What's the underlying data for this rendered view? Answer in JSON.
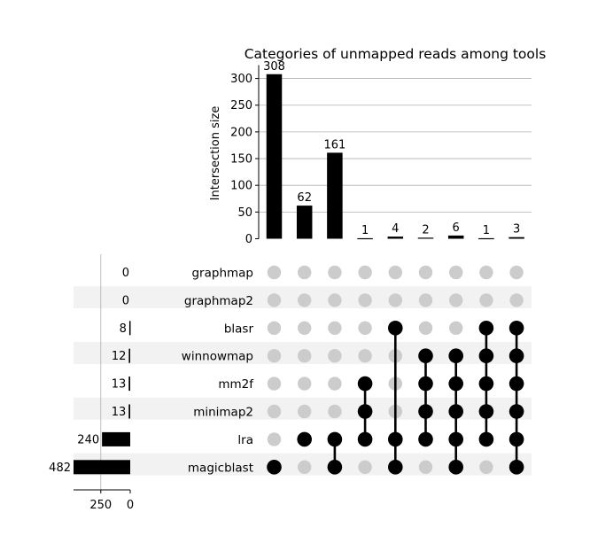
{
  "chart_data": {
    "type": "upset",
    "title": "Categories of unmapped reads among tools",
    "ylabel": "Intersection size",
    "ylim": [
      0,
      325
    ],
    "yticks": [
      0,
      50,
      100,
      150,
      200,
      250,
      300
    ],
    "grid": true,
    "sets": [
      {
        "name": "graphmap",
        "size": 0
      },
      {
        "name": "graphmap2",
        "size": 0
      },
      {
        "name": "blasr",
        "size": 8
      },
      {
        "name": "winnowmap",
        "size": 12
      },
      {
        "name": "mm2f",
        "size": 13
      },
      {
        "name": "minimap2",
        "size": 13
      },
      {
        "name": "lra",
        "size": 240
      },
      {
        "name": "magicblast",
        "size": 482
      }
    ],
    "set_size_xlim": [
      482,
      0
    ],
    "set_size_ticks": [
      250,
      0
    ],
    "intersections": [
      {
        "size": 308,
        "members": [
          "magicblast"
        ]
      },
      {
        "size": 62,
        "members": [
          "lra"
        ]
      },
      {
        "size": 161,
        "members": [
          "lra",
          "magicblast"
        ]
      },
      {
        "size": 1,
        "members": [
          "mm2f",
          "minimap2",
          "lra"
        ]
      },
      {
        "size": 4,
        "members": [
          "blasr",
          "lra",
          "magicblast"
        ]
      },
      {
        "size": 2,
        "members": [
          "winnowmap",
          "mm2f",
          "minimap2",
          "lra"
        ]
      },
      {
        "size": 6,
        "members": [
          "winnowmap",
          "mm2f",
          "minimap2",
          "lra",
          "magicblast"
        ]
      },
      {
        "size": 1,
        "members": [
          "blasr",
          "winnowmap",
          "mm2f",
          "minimap2",
          "lra"
        ]
      },
      {
        "size": 3,
        "members": [
          "blasr",
          "winnowmap",
          "mm2f",
          "minimap2",
          "lra",
          "magicblast"
        ]
      }
    ],
    "colors": {
      "bar": "#000000",
      "active_dot": "#000000",
      "inactive_dot": "#cccccc",
      "stripe": "#f2f2f2",
      "grid": "#b0b0b0"
    }
  }
}
